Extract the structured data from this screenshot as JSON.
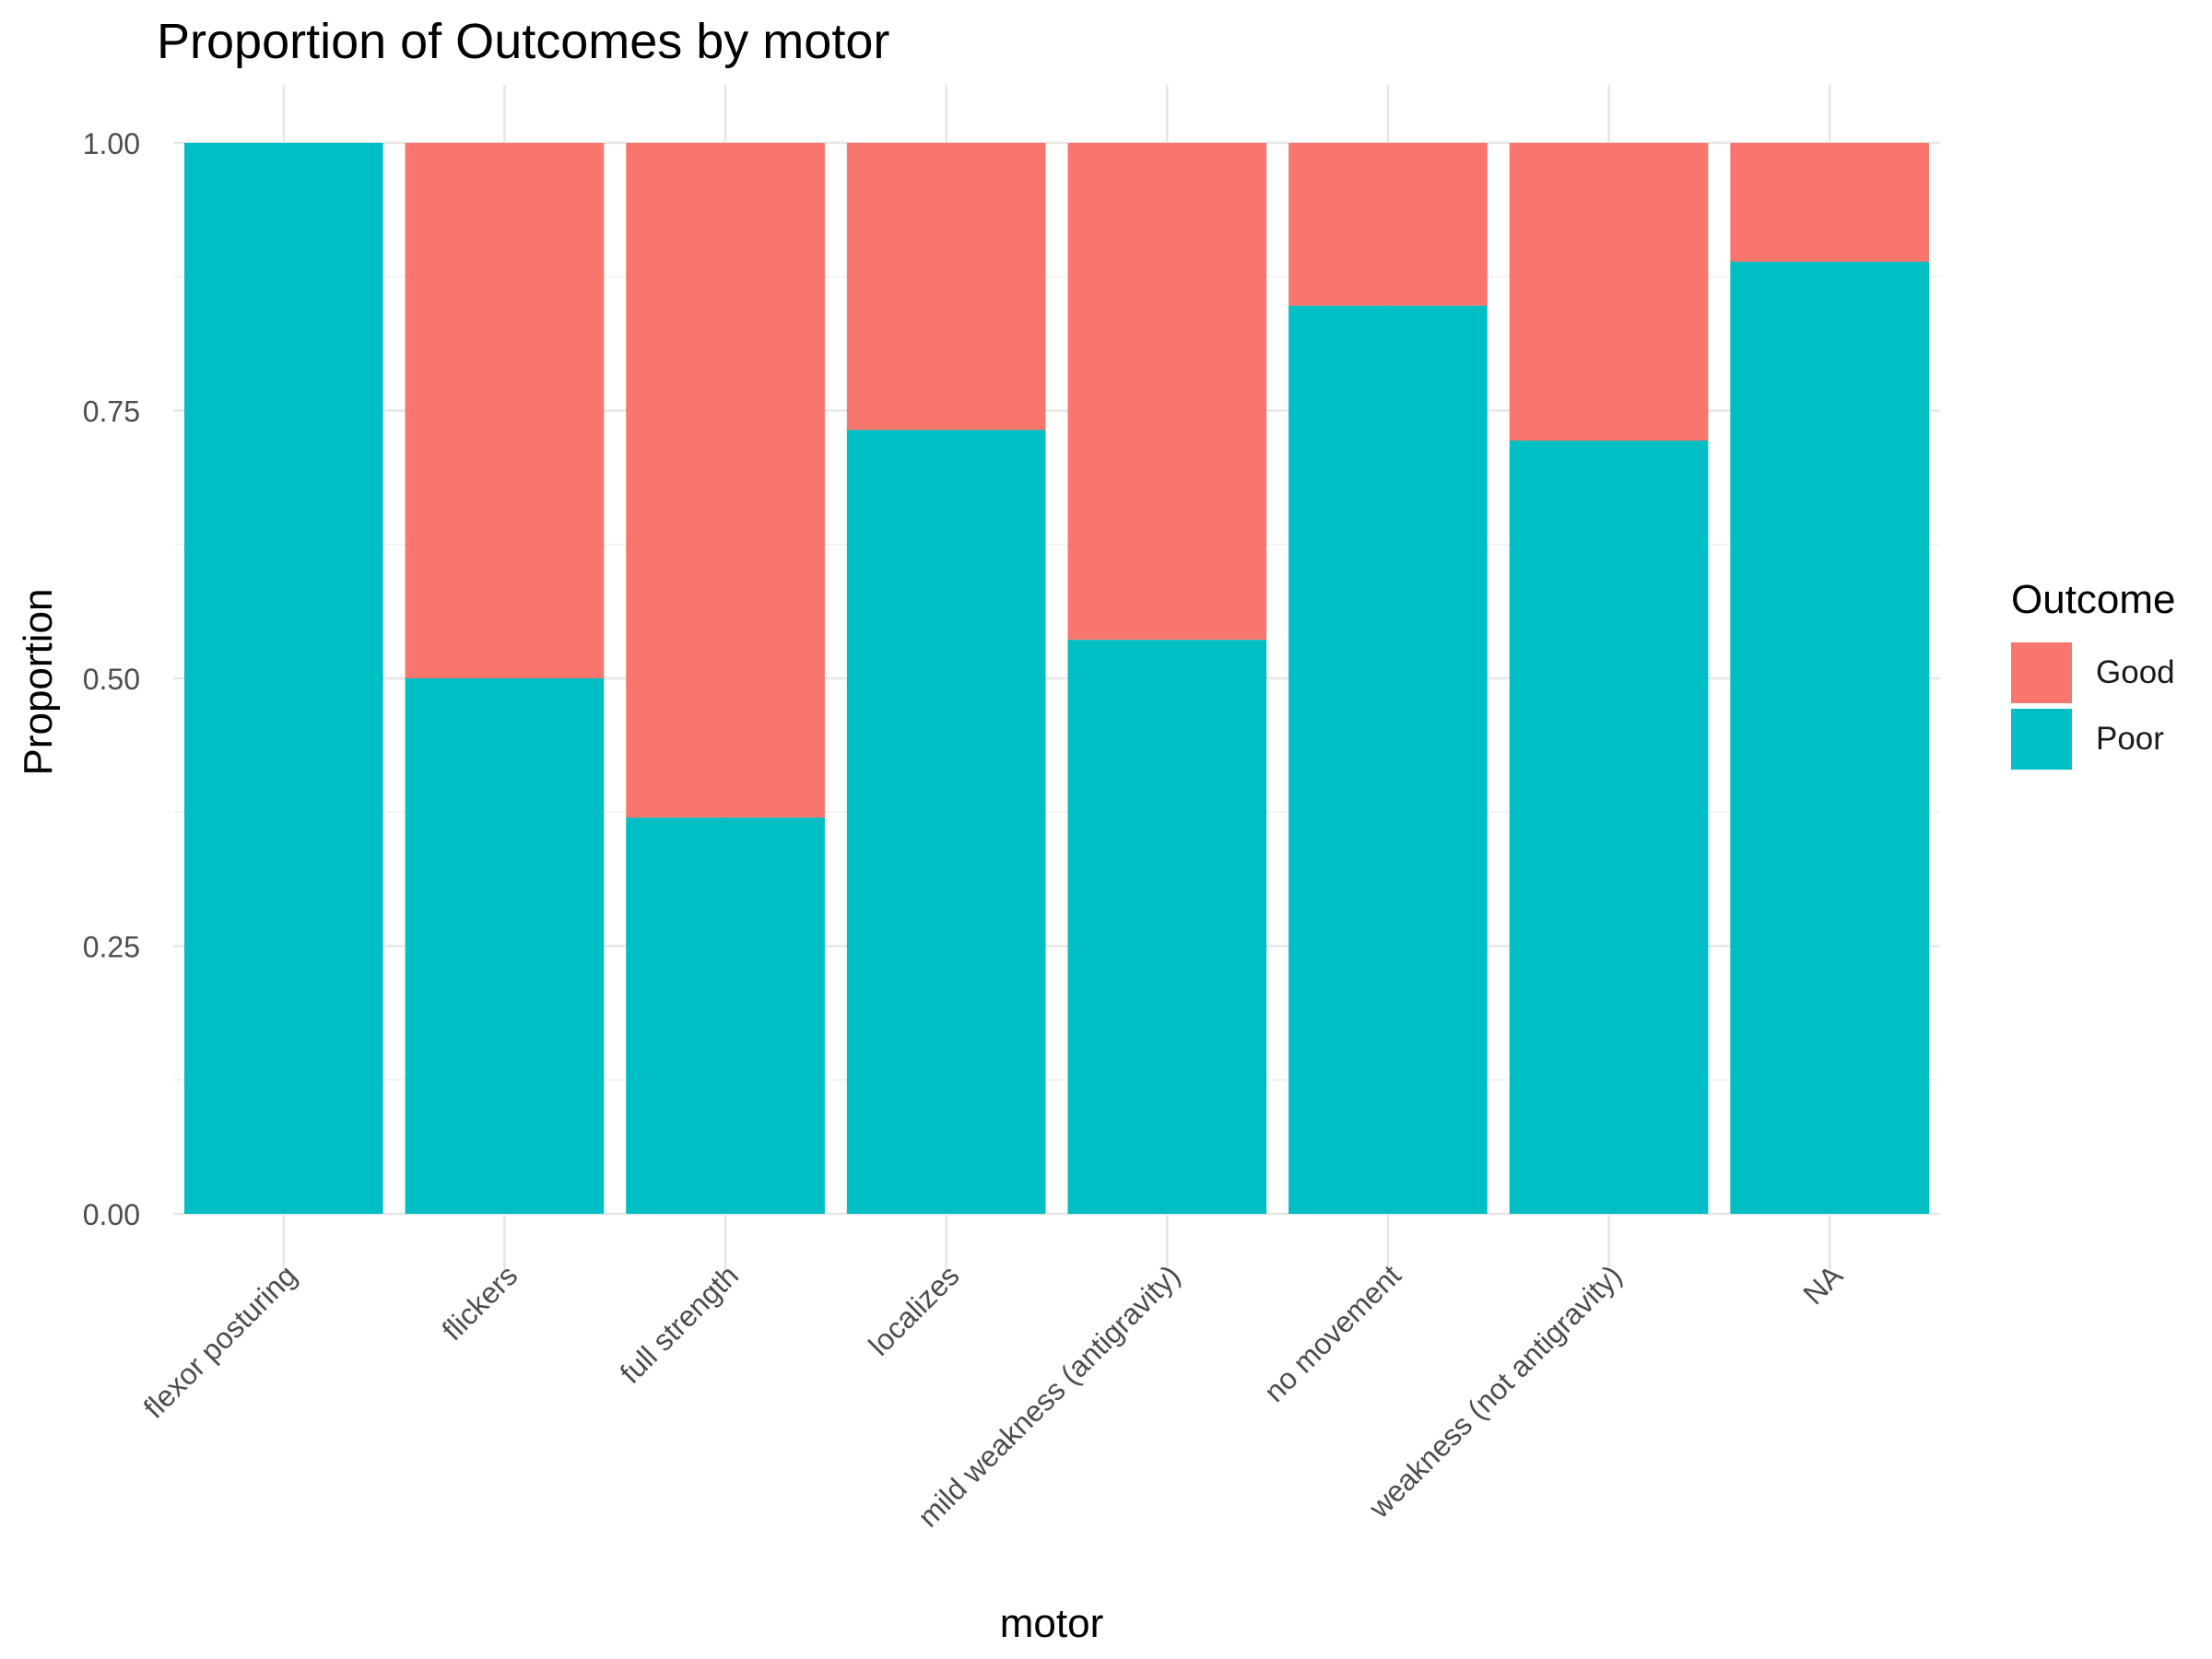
{
  "chart_data": {
    "type": "bar",
    "stacked": true,
    "title": "Proportion of Outcomes by motor",
    "xlabel": "motor",
    "ylabel": "Proportion",
    "ylim": [
      0,
      1
    ],
    "yticks": [
      "0.00",
      "0.25",
      "0.50",
      "0.75",
      "1.00"
    ],
    "categories": [
      "flexor posturing",
      "flickers",
      "full strength",
      "localizes",
      "mild weakness (antigravity)",
      "no movement",
      "weakness (not antigravity)",
      "NA"
    ],
    "series": [
      {
        "name": "Good",
        "color": "#F8766D",
        "values": [
          0.0,
          0.5,
          0.63,
          0.268,
          0.464,
          0.152,
          0.278,
          0.111
        ]
      },
      {
        "name": "Poor",
        "color": "#00BFC4",
        "values": [
          1.0,
          0.5,
          0.37,
          0.732,
          0.536,
          0.848,
          0.722,
          0.889
        ]
      }
    ],
    "legend": {
      "title": "Outcome",
      "position": "right"
    },
    "grid": true
  }
}
